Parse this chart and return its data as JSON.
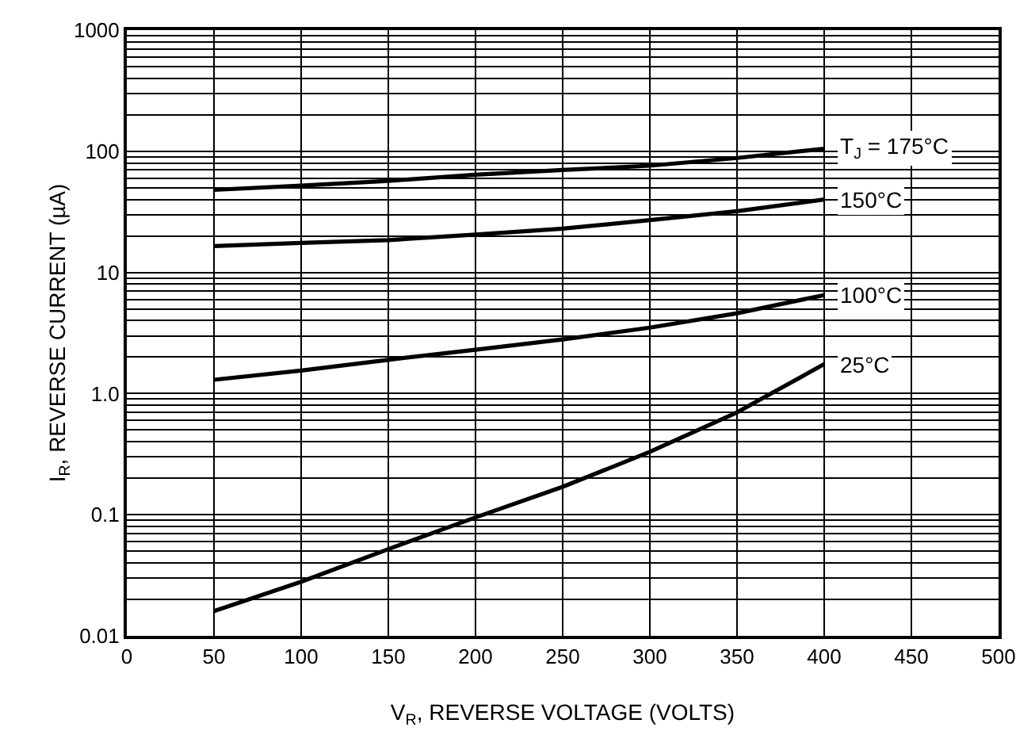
{
  "chart_data": {
    "type": "line",
    "xlabel": "V$_{R}$, REVERSE VOLTAGE (VOLTS)",
    "ylabel": "I$_{R}$, REVERSE CURRENT (µA)",
    "x": [
      50,
      100,
      150,
      200,
      250,
      300,
      350,
      400
    ],
    "series": [
      {
        "name": "T$_{J}$ = 175°C",
        "color": "#000000",
        "values": [
          48,
          52,
          57,
          64,
          70,
          76,
          88,
          105
        ]
      },
      {
        "name": "150°C",
        "color": "#000000",
        "values": [
          16.5,
          17.5,
          18.5,
          20.5,
          23,
          27,
          32,
          40
        ]
      },
      {
        "name": "100°C",
        "color": "#000000",
        "values": [
          1.3,
          1.55,
          1.9,
          2.3,
          2.8,
          3.5,
          4.6,
          6.5
        ]
      },
      {
        "name": "25°C",
        "color": "#000000",
        "values": [
          0.016,
          0.028,
          0.052,
          0.095,
          0.17,
          0.33,
          0.7,
          1.75
        ]
      }
    ],
    "log": "y",
    "xlim": [
      0,
      500
    ],
    "xticks": [
      0,
      50,
      100,
      150,
      200,
      250,
      300,
      350,
      400,
      450,
      500
    ],
    "ylim": [
      0.01,
      1000
    ],
    "yticks": [
      0.01,
      0.1,
      {
        "value": 1,
        "label": "1.0"
      },
      10,
      100,
      1000
    ],
    "grid": true,
    "legend": false,
    "marker": "none",
    "line_style": "solid"
  }
}
